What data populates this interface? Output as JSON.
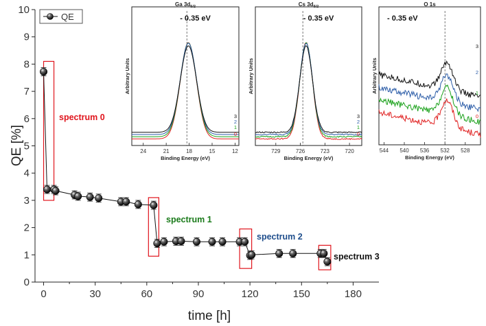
{
  "chart_data": {
    "type": "scatter",
    "xlabel": "time [h]",
    "ylabel": "QE [%]",
    "xlim": [
      -5,
      195
    ],
    "ylim": [
      0,
      10
    ],
    "xticks": [
      "0",
      "30",
      "60",
      "90",
      "120",
      "150",
      "180"
    ],
    "yticks": [
      "0",
      "1",
      "2",
      "3",
      "4",
      "5",
      "6",
      "7",
      "8",
      "9",
      "10"
    ],
    "legend": {
      "label": "QE",
      "position": "top-left"
    },
    "series": [
      {
        "name": "QE",
        "x": [
          0,
          2,
          6,
          7,
          18,
          20,
          27,
          32,
          45,
          48,
          55,
          64,
          66,
          70,
          77,
          80,
          89,
          98,
          104,
          114,
          117,
          120,
          121,
          137,
          145,
          161,
          163,
          165
        ],
        "y": [
          7.72,
          3.4,
          3.4,
          3.35,
          3.2,
          3.15,
          3.12,
          3.08,
          2.95,
          2.95,
          2.85,
          2.82,
          1.42,
          1.48,
          1.5,
          1.5,
          1.48,
          1.48,
          1.48,
          1.48,
          1.48,
          0.98,
          1.0,
          1.05,
          1.05,
          1.05,
          1.05,
          0.75
        ],
        "yerr": 0.15
      }
    ],
    "annotations": [
      {
        "text": "spectrum 0",
        "color": "#e0141c",
        "box_x": [
          0,
          6
        ],
        "box_y": [
          3.0,
          8.1
        ]
      },
      {
        "text": "spectrum 1",
        "color": "#1a7a1a",
        "box_x": [
          61,
          67
        ],
        "box_y": [
          0.95,
          3.1
        ]
      },
      {
        "text": "spectrum 2",
        "color": "#1f4e8c",
        "box_x": [
          114,
          121
        ],
        "box_y": [
          0.5,
          1.95
        ]
      },
      {
        "text": "spectrum 3",
        "color": "#111111",
        "box_x": [
          160,
          167
        ],
        "box_y": [
          0.45,
          1.35
        ]
      }
    ],
    "insets": [
      {
        "title": "Ga 3d5/2",
        "title_main": "Ga 3d",
        "title_sub": "5/2",
        "shift_label": "- 0.35 eV",
        "xlabel": "Binding Energy (eV)",
        "ylabel": "Arbitrary Units",
        "xlim": [
          25.5,
          11.5
        ],
        "xticks": [
          24,
          21,
          18,
          15,
          12
        ],
        "dashed_at": 18.3,
        "peak_center": 18.1,
        "peak_width": 1.5,
        "curve_labels": [
          "3",
          "2",
          "1",
          "0"
        ],
        "colors": [
          "#111111",
          "#2c5da8",
          "#18a018",
          "#e02020"
        ]
      },
      {
        "title": "Cs 3d5/2",
        "title_main": "Cs 3d",
        "title_sub": "5/2",
        "shift_label": "- 0.35 eV",
        "xlabel": "Binding Energy (eV)",
        "ylabel": "Arbitrary Units",
        "xlim": [
          731.5,
          718.5
        ],
        "xticks": [
          729,
          726,
          723,
          720
        ],
        "dashed_at": 725.7,
        "peak_center": 725.3,
        "peak_width": 1.1,
        "curve_labels": [
          "3",
          "2",
          "1",
          "0"
        ],
        "colors": [
          "#111111",
          "#2c5da8",
          "#18a018",
          "#e02020"
        ]
      },
      {
        "title": "O 1s",
        "title_main": "O 1s",
        "title_sub": "",
        "shift_label": "- 0.35 eV",
        "xlabel": "Binding Energy (eV)",
        "ylabel": "Arbitrary Units",
        "xlim": [
          545,
          525
        ],
        "xticks": [
          544,
          540,
          536,
          532,
          528
        ],
        "dashed_at": 532,
        "peak_center": 531.6,
        "peak_width": 1.7,
        "curve_labels": [
          "3",
          "2",
          "1",
          "0"
        ],
        "colors": [
          "#111111",
          "#2c5da8",
          "#18a018",
          "#e02020"
        ]
      }
    ]
  }
}
